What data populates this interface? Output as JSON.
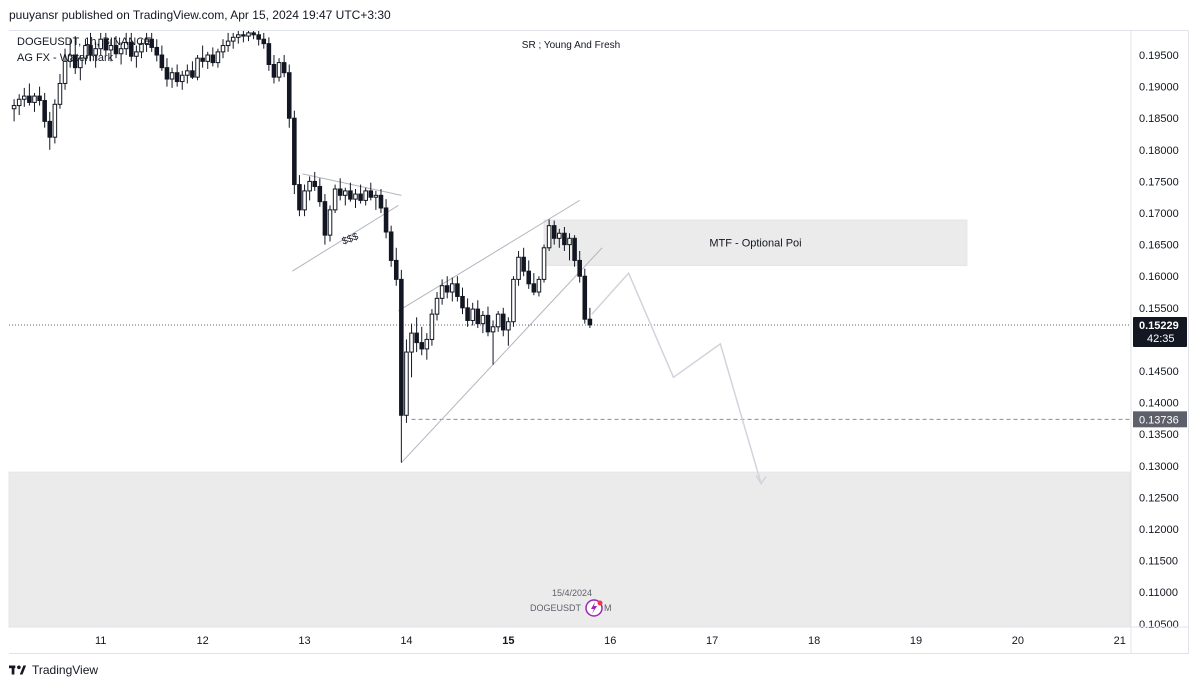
{
  "header": {
    "published_line": "puuyansr published on TradingView.com, Apr 15, 2024 19:47 UTC+3:30"
  },
  "footer": {
    "brand": "TradingView"
  },
  "colors": {
    "candle": "#131722",
    "zone_fill": "#ebebeb",
    "trendline": "#b2b5be",
    "projection": "#d1d4dc",
    "price_badge": "#131722",
    "level_badge": "#5d606b",
    "grid": "#e0e3eb"
  },
  "chart_data": {
    "type": "candlestick",
    "symbol_line": "DOGEUSDT, 1h, BINANCE",
    "watermark_line": "AG FX - Watermark",
    "top_note": "SR ; Young And Fresh",
    "x_ticks": [
      "11",
      "12",
      "13",
      "14",
      "15",
      "16",
      "17",
      "18",
      "19",
      "20",
      "21"
    ],
    "y_ticks": [
      "0.19500",
      "0.19000",
      "0.18500",
      "0.18000",
      "0.17500",
      "0.17000",
      "0.16500",
      "0.16000",
      "0.15500",
      "0.14500",
      "0.14000",
      "0.13500",
      "0.13000",
      "0.12500",
      "0.12000",
      "0.11500",
      "0.11000",
      "0.10500"
    ],
    "ylim": [
      0.1045,
      0.1988
    ],
    "xlim": [
      10.1,
      21.1
    ],
    "current_price": {
      "value": "0.15229",
      "countdown": "42:35"
    },
    "level_line": {
      "value": "0.13736"
    },
    "zones": [
      {
        "label": "MTF - Optional Poi",
        "x0": 15.35,
        "x1": 19.5,
        "y0": 0.1617,
        "y1": 0.1689
      },
      {
        "label": "",
        "x0": 10.1,
        "x1": 21.1,
        "y0": 0.1045,
        "y1": 0.129
      }
    ],
    "annotations": [
      {
        "text": "$$$",
        "x": 13.38,
        "y": 0.165
      }
    ],
    "date_label": "15/4/2024",
    "ticker_label": "DOGEUSDT",
    "ticker_suffix": "M",
    "trendlines": [
      [
        [
          12.98,
          0.1762
        ],
        [
          13.95,
          0.1728
        ]
      ],
      [
        [
          12.88,
          0.1608
        ],
        [
          13.92,
          0.1712
        ]
      ],
      [
        [
          13.92,
          0.1545
        ],
        [
          15.7,
          0.172
        ]
      ],
      [
        [
          13.95,
          0.1305
        ],
        [
          15.92,
          0.1645
        ]
      ]
    ],
    "projection_path": [
      [
        15.82,
        0.154
      ],
      [
        16.18,
        0.1605
      ],
      [
        16.62,
        0.144
      ],
      [
        17.08,
        0.1493
      ],
      [
        17.48,
        0.1272
      ]
    ],
    "candles": [
      [
        10.15,
        0.1865,
        0.188,
        0.1845,
        0.187
      ],
      [
        10.2,
        0.187,
        0.1888,
        0.1855,
        0.188
      ],
      [
        10.25,
        0.188,
        0.1898,
        0.1868,
        0.1885
      ],
      [
        10.3,
        0.1885,
        0.1905,
        0.187,
        0.1875
      ],
      [
        10.35,
        0.1875,
        0.189,
        0.186,
        0.1885
      ],
      [
        10.4,
        0.1885,
        0.19,
        0.187,
        0.1878
      ],
      [
        10.45,
        0.1878,
        0.189,
        0.1835,
        0.1845
      ],
      [
        10.5,
        0.1845,
        0.186,
        0.18,
        0.182
      ],
      [
        10.55,
        0.182,
        0.188,
        0.181,
        0.1872
      ],
      [
        10.6,
        0.1872,
        0.192,
        0.1865,
        0.1905
      ],
      [
        10.65,
        0.1905,
        0.196,
        0.1895,
        0.194
      ],
      [
        10.7,
        0.194,
        0.1975,
        0.193,
        0.195
      ],
      [
        10.75,
        0.195,
        0.198,
        0.192,
        0.193
      ],
      [
        10.8,
        0.193,
        0.195,
        0.191,
        0.1945
      ],
      [
        10.85,
        0.1945,
        0.1975,
        0.1935,
        0.1965
      ],
      [
        10.9,
        0.1965,
        0.1985,
        0.194,
        0.195
      ],
      [
        10.95,
        0.195,
        0.197,
        0.193,
        0.196
      ],
      [
        11.0,
        0.196,
        0.1985,
        0.195,
        0.1975
      ],
      [
        11.05,
        0.1975,
        0.1985,
        0.195,
        0.1958
      ],
      [
        11.1,
        0.1958,
        0.1975,
        0.194,
        0.1965
      ],
      [
        11.15,
        0.1965,
        0.198,
        0.1945,
        0.1952
      ],
      [
        11.2,
        0.1952,
        0.197,
        0.1935,
        0.196
      ],
      [
        11.25,
        0.196,
        0.1985,
        0.195,
        0.197
      ],
      [
        11.3,
        0.197,
        0.1985,
        0.194,
        0.1948
      ],
      [
        11.35,
        0.1948,
        0.1965,
        0.193,
        0.1955
      ],
      [
        11.4,
        0.1955,
        0.1975,
        0.1945,
        0.1968
      ],
      [
        11.45,
        0.1968,
        0.1985,
        0.1955,
        0.1975
      ],
      [
        11.5,
        0.1975,
        0.1985,
        0.1955,
        0.1962
      ],
      [
        11.55,
        0.1962,
        0.1975,
        0.194,
        0.195
      ],
      [
        11.6,
        0.195,
        0.1965,
        0.1925,
        0.193
      ],
      [
        11.65,
        0.193,
        0.1945,
        0.19,
        0.1912
      ],
      [
        11.7,
        0.1912,
        0.193,
        0.1898,
        0.1922
      ],
      [
        11.75,
        0.1922,
        0.1935,
        0.19,
        0.1908
      ],
      [
        11.8,
        0.1908,
        0.1925,
        0.1895,
        0.1918
      ],
      [
        11.85,
        0.1918,
        0.1935,
        0.1905,
        0.1925
      ],
      [
        11.9,
        0.1925,
        0.194,
        0.1912,
        0.1915
      ],
      [
        11.95,
        0.1915,
        0.195,
        0.191,
        0.1945
      ],
      [
        12.0,
        0.1945,
        0.1965,
        0.193,
        0.194
      ],
      [
        12.05,
        0.194,
        0.1955,
        0.1928,
        0.195
      ],
      [
        12.1,
        0.195,
        0.1962,
        0.1932,
        0.1938
      ],
      [
        12.15,
        0.1938,
        0.196,
        0.193,
        0.1955
      ],
      [
        12.2,
        0.1955,
        0.1975,
        0.1945,
        0.1965
      ],
      [
        12.25,
        0.1965,
        0.1985,
        0.1955,
        0.1972
      ],
      [
        12.3,
        0.1972,
        0.1985,
        0.196,
        0.1978
      ],
      [
        12.35,
        0.1978,
        0.1988,
        0.1968,
        0.1982
      ],
      [
        12.4,
        0.1982,
        0.1988,
        0.197,
        0.198
      ],
      [
        12.45,
        0.198,
        0.1988,
        0.1972,
        0.1985
      ],
      [
        12.5,
        0.1985,
        0.1988,
        0.1975,
        0.1982
      ],
      [
        12.55,
        0.1982,
        0.1988,
        0.1965,
        0.1975
      ],
      [
        12.6,
        0.1975,
        0.1985,
        0.196,
        0.1968
      ],
      [
        12.65,
        0.1968,
        0.1978,
        0.1925,
        0.1935
      ],
      [
        12.7,
        0.1935,
        0.195,
        0.1905,
        0.1915
      ],
      [
        12.75,
        0.1915,
        0.1945,
        0.1908,
        0.1938
      ],
      [
        12.8,
        0.1938,
        0.195,
        0.1915,
        0.1922
      ],
      [
        12.85,
        0.1922,
        0.1935,
        0.1835,
        0.185
      ],
      [
        12.9,
        0.185,
        0.1862,
        0.173,
        0.1745
      ],
      [
        12.95,
        0.1745,
        0.176,
        0.1695,
        0.1705
      ],
      [
        13.0,
        0.1705,
        0.1745,
        0.1695,
        0.1735
      ],
      [
        13.05,
        0.1735,
        0.1758,
        0.172,
        0.175
      ],
      [
        13.1,
        0.175,
        0.1765,
        0.1735,
        0.1742
      ],
      [
        13.15,
        0.1742,
        0.1755,
        0.171,
        0.1718
      ],
      [
        13.2,
        0.1718,
        0.173,
        0.165,
        0.1665
      ],
      [
        13.25,
        0.1665,
        0.1712,
        0.1655,
        0.1705
      ],
      [
        13.3,
        0.1705,
        0.1745,
        0.17,
        0.1738
      ],
      [
        13.35,
        0.1738,
        0.1755,
        0.172,
        0.1728
      ],
      [
        13.4,
        0.1728,
        0.174,
        0.1712,
        0.1735
      ],
      [
        13.45,
        0.1735,
        0.1748,
        0.1718,
        0.1722
      ],
      [
        13.5,
        0.1722,
        0.1738,
        0.1708,
        0.173
      ],
      [
        13.55,
        0.173,
        0.1745,
        0.1715,
        0.172
      ],
      [
        13.6,
        0.172,
        0.174,
        0.1712,
        0.1735
      ],
      [
        13.65,
        0.1735,
        0.1748,
        0.172,
        0.1725
      ],
      [
        13.7,
        0.1725,
        0.1735,
        0.1705,
        0.1728
      ],
      [
        13.75,
        0.1728,
        0.1738,
        0.17,
        0.1708
      ],
      [
        13.8,
        0.1708,
        0.1722,
        0.166,
        0.167
      ],
      [
        13.85,
        0.167,
        0.168,
        0.1615,
        0.1625
      ],
      [
        13.9,
        0.1625,
        0.1645,
        0.1585,
        0.1595
      ],
      [
        13.95,
        0.1595,
        0.161,
        0.1305,
        0.138
      ],
      [
        14.0,
        0.138,
        0.15,
        0.1368,
        0.148
      ],
      [
        14.05,
        0.148,
        0.1525,
        0.144,
        0.151
      ],
      [
        14.1,
        0.151,
        0.1535,
        0.148,
        0.1495
      ],
      [
        14.15,
        0.1495,
        0.152,
        0.1475,
        0.1485
      ],
      [
        14.2,
        0.1485,
        0.151,
        0.1468,
        0.15
      ],
      [
        14.25,
        0.15,
        0.1548,
        0.149,
        0.154
      ],
      [
        14.3,
        0.154,
        0.1575,
        0.153,
        0.1565
      ],
      [
        14.35,
        0.1565,
        0.1595,
        0.1555,
        0.1585
      ],
      [
        14.4,
        0.1585,
        0.16,
        0.1565,
        0.1575
      ],
      [
        14.45,
        0.1575,
        0.1598,
        0.156,
        0.1588
      ],
      [
        14.5,
        0.1588,
        0.16,
        0.156,
        0.1568
      ],
      [
        14.55,
        0.1568,
        0.1582,
        0.154,
        0.155
      ],
      [
        14.6,
        0.155,
        0.1565,
        0.152,
        0.153
      ],
      [
        14.65,
        0.153,
        0.1558,
        0.1522,
        0.1548
      ],
      [
        14.7,
        0.1548,
        0.1562,
        0.1518,
        0.1525
      ],
      [
        14.75,
        0.1525,
        0.1545,
        0.151,
        0.1538
      ],
      [
        14.8,
        0.1538,
        0.1552,
        0.1505,
        0.1512
      ],
      [
        14.85,
        0.1512,
        0.153,
        0.146,
        0.152
      ],
      [
        14.9,
        0.152,
        0.1545,
        0.1512,
        0.154
      ],
      [
        14.95,
        0.154,
        0.155,
        0.1505,
        0.1515
      ],
      [
        15.0,
        0.1515,
        0.1535,
        0.149,
        0.1528
      ],
      [
        15.05,
        0.1528,
        0.16,
        0.152,
        0.1595
      ],
      [
        15.1,
        0.1595,
        0.164,
        0.1585,
        0.163
      ],
      [
        15.15,
        0.163,
        0.1645,
        0.16,
        0.1608
      ],
      [
        15.2,
        0.1608,
        0.1625,
        0.158,
        0.1588
      ],
      [
        15.25,
        0.1588,
        0.1605,
        0.157,
        0.1575
      ],
      [
        15.3,
        0.1575,
        0.16,
        0.1568,
        0.1595
      ],
      [
        15.35,
        0.1595,
        0.165,
        0.159,
        0.1645
      ],
      [
        15.4,
        0.1645,
        0.169,
        0.164,
        0.168
      ],
      [
        15.45,
        0.168,
        0.1688,
        0.165,
        0.166
      ],
      [
        15.5,
        0.166,
        0.1675,
        0.1645,
        0.1668
      ],
      [
        15.55,
        0.1668,
        0.1678,
        0.164,
        0.165
      ],
      [
        15.6,
        0.165,
        0.1668,
        0.1625,
        0.166
      ],
      [
        15.65,
        0.166,
        0.1665,
        0.1615,
        0.1625
      ],
      [
        15.7,
        0.1625,
        0.164,
        0.159,
        0.16
      ],
      [
        15.75,
        0.16,
        0.1612,
        0.1525,
        0.1532
      ],
      [
        15.8,
        0.1532,
        0.155,
        0.1518,
        0.1523
      ]
    ]
  }
}
